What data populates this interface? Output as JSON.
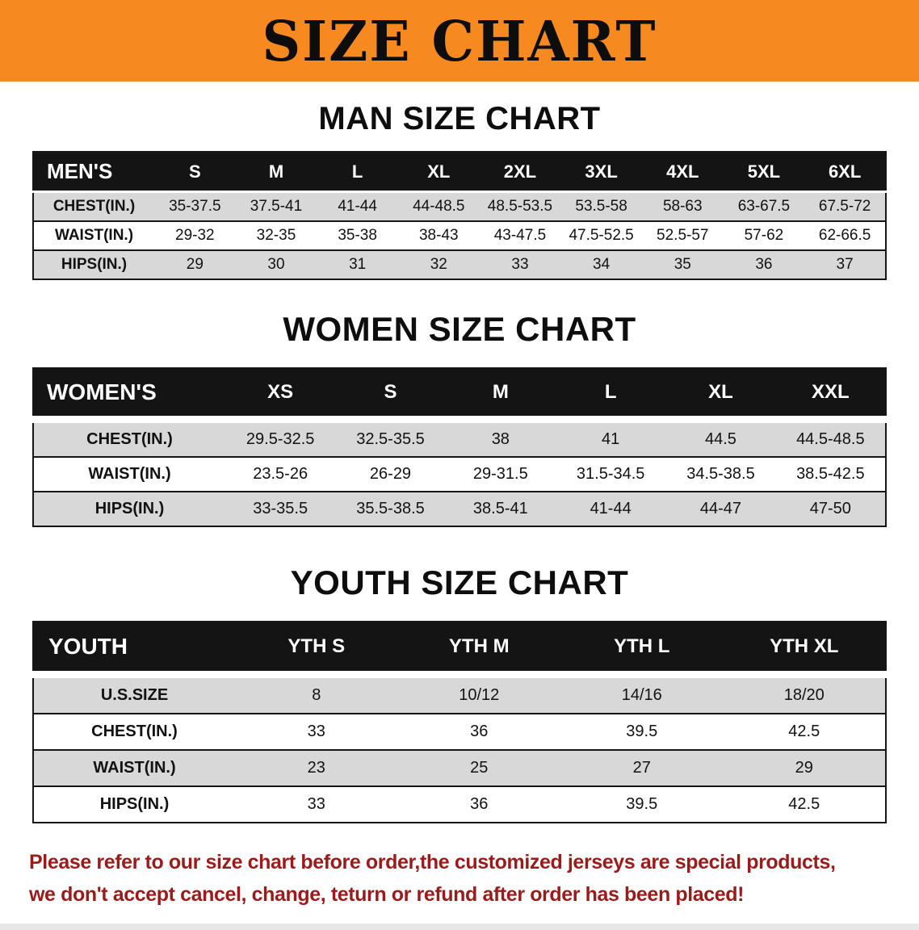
{
  "banner": {
    "title": "SIZE CHART"
  },
  "sections": [
    {
      "heading": "MAN SIZE CHART",
      "table": {
        "header": [
          "MEN'S",
          "S",
          "M",
          "L",
          "XL",
          "2XL",
          "3XL",
          "4XL",
          "5XL",
          "6XL"
        ],
        "rows": [
          {
            "label": "CHEST(IN.)",
            "values": [
              "35-37.5",
              "37.5-41",
              "41-44",
              "44-48.5",
              "48.5-53.5",
              "53.5-58",
              "58-63",
              "63-67.5",
              "67.5-72"
            ]
          },
          {
            "label": "WAIST(IN.)",
            "values": [
              "29-32",
              "32-35",
              "35-38",
              "38-43",
              "43-47.5",
              "47.5-52.5",
              "52.5-57",
              "57-62",
              "62-66.5"
            ]
          },
          {
            "label": "HIPS(IN.)",
            "values": [
              "29",
              "30",
              "31",
              "32",
              "33",
              "34",
              "35",
              "36",
              "37"
            ]
          }
        ]
      }
    },
    {
      "heading": "WOMEN SIZE CHART",
      "table": {
        "header": [
          "WOMEN'S",
          "XS",
          "S",
          "M",
          "L",
          "XL",
          "XXL"
        ],
        "rows": [
          {
            "label": "CHEST(IN.)",
            "values": [
              "29.5-32.5",
              "32.5-35.5",
              "38",
              "41",
              "44.5",
              "44.5-48.5"
            ]
          },
          {
            "label": "WAIST(IN.)",
            "values": [
              "23.5-26",
              "26-29",
              "29-31.5",
              "31.5-34.5",
              "34.5-38.5",
              "38.5-42.5"
            ]
          },
          {
            "label": "HIPS(IN.)",
            "values": [
              "33-35.5",
              "35.5-38.5",
              "38.5-41",
              "41-44",
              "44-47",
              "47-50"
            ]
          }
        ]
      }
    },
    {
      "heading": "YOUTH SIZE CHART",
      "table": {
        "header": [
          "YOUTH",
          "YTH S",
          "YTH M",
          "YTH L",
          "YTH XL"
        ],
        "rows": [
          {
            "label": "U.S.SIZE",
            "values": [
              "8",
              "10/12",
              "14/16",
              "18/20"
            ]
          },
          {
            "label": "CHEST(IN.)",
            "values": [
              "33",
              "36",
              "39.5",
              "42.5"
            ]
          },
          {
            "label": "WAIST(IN.)",
            "values": [
              "23",
              "25",
              "27",
              "29"
            ]
          },
          {
            "label": "HIPS(IN.)",
            "values": [
              "33",
              "36",
              "39.5",
              "42.5"
            ]
          }
        ]
      }
    }
  ],
  "footer": {
    "line1": "Please refer to our size chart before order,the customized jerseys are special products,",
    "line2": "we don't accept cancel, change, teturn or refund after order has been placed!"
  },
  "colors": {
    "banner_bg": "#F6891F",
    "header_bar": "#141414",
    "row_shade": "#D8D8D8",
    "note_text": "#9B1B1B"
  }
}
